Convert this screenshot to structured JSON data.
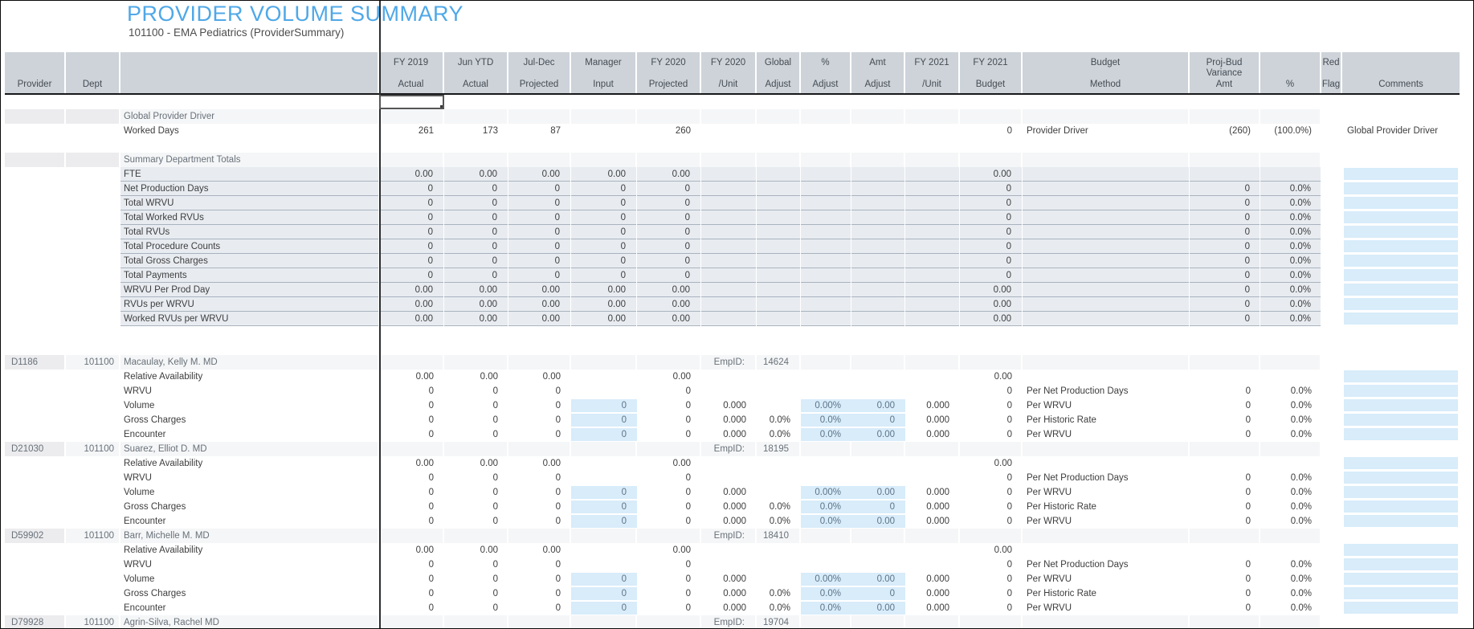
{
  "window": {
    "title": "PROVIDER VOLUME SUMMARY",
    "subtitle": "101100 - EMA Pediatrics (ProviderSummary)"
  },
  "palette": {
    "title_blue": "#4fa8e8",
    "header_bg": "#cdd3d9",
    "summary_row_bg": "#e8ecf1",
    "input_cell_blue": "#d8ecfa",
    "freeze_line": "#2c2d2e"
  },
  "table": {
    "columns": [
      {
        "id": "provider",
        "lines": [
          "Provider"
        ]
      },
      {
        "id": "dept",
        "lines": [
          "Dept"
        ]
      },
      {
        "id": "label",
        "lines": []
      },
      {
        "id": "fy2019-actual",
        "lines": [
          "FY 2019",
          "Actual"
        ]
      },
      {
        "id": "jun-ytd-actual",
        "lines": [
          "Jun YTD",
          "Actual"
        ]
      },
      {
        "id": "jul-dec-projected",
        "lines": [
          "Jul-Dec",
          "Projected"
        ]
      },
      {
        "id": "manager-input",
        "lines": [
          "Manager",
          "Input"
        ]
      },
      {
        "id": "fy2020-projected",
        "lines": [
          "FY 2020",
          "Projected"
        ]
      },
      {
        "id": "fy2020-unit",
        "lines": [
          "FY 2020",
          "/Unit"
        ]
      },
      {
        "id": "global-adjust",
        "lines": [
          "Global",
          "Adjust"
        ]
      },
      {
        "id": "pct-adjust",
        "lines": [
          "%",
          "Adjust"
        ]
      },
      {
        "id": "amt-adjust",
        "lines": [
          "Amt",
          "Adjust"
        ]
      },
      {
        "id": "fy2021-unit",
        "lines": [
          "FY 2021",
          "/Unit"
        ]
      },
      {
        "id": "fy2021-budget",
        "lines": [
          "FY 2021",
          "Budget"
        ]
      },
      {
        "id": "budget-method",
        "lines": [
          "Budget",
          "Method"
        ]
      },
      {
        "id": "proj-bud-variance-amt",
        "lines": [
          "Proj-Bud",
          "Variance",
          "Amt"
        ]
      },
      {
        "id": "variance-pct",
        "lines": [
          "%"
        ]
      },
      {
        "id": "red-flag",
        "lines": [
          "Red",
          "Flag"
        ]
      },
      {
        "id": "comments",
        "lines": [
          "Comments"
        ]
      }
    ],
    "rows": [
      {
        "type": "sel",
        "name": "row-empty-selected",
        "cells": {}
      },
      {
        "type": "sec",
        "name": "row-section-global-provider-driver",
        "cells": {
          "2": "Global Provider Driver"
        }
      },
      {
        "type": "data",
        "name": "row-worked-days",
        "cells": {
          "2": "Worked Days",
          "3": "261",
          "4": "173",
          "5": "87",
          "7": "260",
          "13": "0",
          "14": "Provider Driver",
          "15": "(260)",
          "16": "(100.0%)",
          "18": "Global Provider Driver"
        }
      },
      {
        "type": "blank",
        "name": "row-blank"
      },
      {
        "type": "sec",
        "name": "row-section-summary-department-totals",
        "cells": {
          "2": "Summary Department Totals"
        }
      },
      {
        "type": "sum",
        "name": "row-fte",
        "comment_blue": true,
        "cells": {
          "2": "FTE",
          "3": "0.00",
          "4": "0.00",
          "5": "0.00",
          "6": "0.00",
          "7": "0.00",
          "13": "0.00"
        }
      },
      {
        "type": "sum",
        "name": "row-net-production-days",
        "comment_blue": true,
        "cells": {
          "2": "Net Production Days",
          "3": "0",
          "4": "0",
          "5": "0",
          "6": "0",
          "7": "0",
          "13": "0",
          "15": "0",
          "16": "0.0%"
        }
      },
      {
        "type": "sum",
        "name": "row-total-wrvu",
        "comment_blue": true,
        "cells": {
          "2": "Total WRVU",
          "3": "0",
          "4": "0",
          "5": "0",
          "6": "0",
          "7": "0",
          "13": "0",
          "15": "0",
          "16": "0.0%"
        }
      },
      {
        "type": "sum",
        "name": "row-total-worked-rvus",
        "comment_blue": true,
        "cells": {
          "2": "Total Worked RVUs",
          "3": "0",
          "4": "0",
          "5": "0",
          "6": "0",
          "7": "0",
          "13": "0",
          "15": "0",
          "16": "0.0%"
        }
      },
      {
        "type": "sum",
        "name": "row-total-rvus",
        "comment_blue": true,
        "cells": {
          "2": "Total RVUs",
          "3": "0",
          "4": "0",
          "5": "0",
          "6": "0",
          "7": "0",
          "13": "0",
          "15": "0",
          "16": "0.0%"
        }
      },
      {
        "type": "sum",
        "name": "row-total-procedure-counts",
        "comment_blue": true,
        "cells": {
          "2": "Total Procedure Counts",
          "3": "0",
          "4": "0",
          "5": "0",
          "6": "0",
          "7": "0",
          "13": "0",
          "15": "0",
          "16": "0.0%"
        }
      },
      {
        "type": "sum",
        "name": "row-total-gross-charges",
        "comment_blue": true,
        "cells": {
          "2": "Total Gross Charges",
          "3": "0",
          "4": "0",
          "5": "0",
          "6": "0",
          "7": "0",
          "13": "0",
          "15": "0",
          "16": "0.0%"
        }
      },
      {
        "type": "sum",
        "name": "row-total-payments",
        "comment_blue": true,
        "cells": {
          "2": "Total Payments",
          "3": "0",
          "4": "0",
          "5": "0",
          "6": "0",
          "7": "0",
          "13": "0",
          "15": "0",
          "16": "0.0%"
        }
      },
      {
        "type": "sum",
        "name": "row-wrvu-per-prod-day",
        "comment_blue": true,
        "cells": {
          "2": "WRVU Per Prod Day",
          "3": "0.00",
          "4": "0.00",
          "5": "0.00",
          "6": "0.00",
          "7": "0.00",
          "13": "0.00",
          "15": "0",
          "16": "0.0%"
        }
      },
      {
        "type": "sum",
        "name": "row-rvus-per-wrvu",
        "comment_blue": true,
        "cells": {
          "2": "RVUs per WRVU",
          "3": "0.00",
          "4": "0.00",
          "5": "0.00",
          "6": "0.00",
          "7": "0.00",
          "13": "0.00",
          "15": "0",
          "16": "0.0%"
        }
      },
      {
        "type": "sum",
        "name": "row-worked-rvus-per-wrvu",
        "comment_blue": true,
        "cells": {
          "2": "Worked RVUs per WRVU",
          "3": "0.00",
          "4": "0.00",
          "5": "0.00",
          "6": "0.00",
          "7": "0.00",
          "13": "0.00",
          "15": "0",
          "16": "0.0%"
        }
      },
      {
        "type": "blank",
        "name": "row-blank"
      },
      {
        "type": "blank",
        "name": "row-blank"
      },
      {
        "type": "prov",
        "name": "row-provider-D1186",
        "cells": {
          "0": "D1186",
          "1": "101100",
          "2": "Macaulay, Kelly M. MD",
          "8": "EmpID:",
          "9": "14624"
        }
      },
      {
        "type": "det",
        "name": "row-D1186-relative-availability",
        "comment_blue": true,
        "cells": {
          "2": "Relative Availability",
          "3": "0.00",
          "4": "0.00",
          "5": "0.00",
          "7": "0.00",
          "13": "0.00"
        }
      },
      {
        "type": "det",
        "name": "row-D1186-wrvu",
        "comment_blue": true,
        "cells": {
          "2": "WRVU",
          "3": "0",
          "4": "0",
          "5": "0",
          "7": "0",
          "13": "0",
          "14": "Per Net Production Days",
          "15": "0",
          "16": "0.0%"
        }
      },
      {
        "type": "det",
        "name": "row-D1186-volume",
        "comment_blue": true,
        "blue_cells": [
          6,
          10,
          11
        ],
        "cells": {
          "2": "Volume",
          "3": "0",
          "4": "0",
          "5": "0",
          "6": "0",
          "7": "0",
          "8": "0.000",
          "10": "0.00%",
          "11": "0.00",
          "12": "0.000",
          "13": "0",
          "14": "Per WRVU",
          "15": "0",
          "16": "0.0%"
        }
      },
      {
        "type": "det",
        "name": "row-D1186-gross-charges",
        "comment_blue": true,
        "blue_cells": [
          6,
          10,
          11
        ],
        "cells": {
          "2": "Gross Charges",
          "3": "0",
          "4": "0",
          "5": "0",
          "6": "0",
          "7": "0",
          "8": "0.000",
          "9": "0.0%",
          "10": "0.0%",
          "11": "0",
          "12": "0.000",
          "13": "0",
          "14": "Per Historic Rate",
          "15": "0",
          "16": "0.0%"
        }
      },
      {
        "type": "det",
        "name": "row-D1186-encounter",
        "comment_blue": true,
        "blue_cells": [
          6,
          10,
          11
        ],
        "cells": {
          "2": "Encounter",
          "3": "0",
          "4": "0",
          "5": "0",
          "6": "0",
          "7": "0",
          "8": "0.000",
          "9": "0.0%",
          "10": "0.0%",
          "11": "0.00",
          "12": "0.000",
          "13": "0",
          "14": "Per WRVU",
          "15": "0",
          "16": "0.0%"
        }
      },
      {
        "type": "prov",
        "name": "row-provider-D21030",
        "cells": {
          "0": "D21030",
          "1": "101100",
          "2": "Suarez, Elliot D. MD",
          "8": "EmpID:",
          "9": "18195"
        }
      },
      {
        "type": "det",
        "name": "row-D21030-relative-availability",
        "comment_blue": true,
        "cells": {
          "2": "Relative Availability",
          "3": "0.00",
          "4": "0.00",
          "5": "0.00",
          "7": "0.00",
          "13": "0.00"
        }
      },
      {
        "type": "det",
        "name": "row-D21030-wrvu",
        "comment_blue": true,
        "cells": {
          "2": "WRVU",
          "3": "0",
          "4": "0",
          "5": "0",
          "7": "0",
          "13": "0",
          "14": "Per Net Production Days",
          "15": "0",
          "16": "0.0%"
        }
      },
      {
        "type": "det",
        "name": "row-D21030-volume",
        "comment_blue": true,
        "blue_cells": [
          6,
          10,
          11
        ],
        "cells": {
          "2": "Volume",
          "3": "0",
          "4": "0",
          "5": "0",
          "6": "0",
          "7": "0",
          "8": "0.000",
          "10": "0.00%",
          "11": "0.00",
          "12": "0.000",
          "13": "0",
          "14": "Per WRVU",
          "15": "0",
          "16": "0.0%"
        }
      },
      {
        "type": "det",
        "name": "row-D21030-gross-charges",
        "comment_blue": true,
        "blue_cells": [
          6,
          10,
          11
        ],
        "cells": {
          "2": "Gross Charges",
          "3": "0",
          "4": "0",
          "5": "0",
          "6": "0",
          "7": "0",
          "8": "0.000",
          "9": "0.0%",
          "10": "0.0%",
          "11": "0",
          "12": "0.000",
          "13": "0",
          "14": "Per Historic Rate",
          "15": "0",
          "16": "0.0%"
        }
      },
      {
        "type": "det",
        "name": "row-D21030-encounter",
        "comment_blue": true,
        "blue_cells": [
          6,
          10,
          11
        ],
        "cells": {
          "2": "Encounter",
          "3": "0",
          "4": "0",
          "5": "0",
          "6": "0",
          "7": "0",
          "8": "0.000",
          "9": "0.0%",
          "10": "0.0%",
          "11": "0.00",
          "12": "0.000",
          "13": "0",
          "14": "Per WRVU",
          "15": "0",
          "16": "0.0%"
        }
      },
      {
        "type": "prov",
        "name": "row-provider-D59902",
        "cells": {
          "0": "D59902",
          "1": "101100",
          "2": "Barr, Michelle M. MD",
          "8": "EmpID:",
          "9": "18410"
        }
      },
      {
        "type": "det",
        "name": "row-D59902-relative-availability",
        "comment_blue": true,
        "cells": {
          "2": "Relative Availability",
          "3": "0.00",
          "4": "0.00",
          "5": "0.00",
          "7": "0.00",
          "13": "0.00"
        }
      },
      {
        "type": "det",
        "name": "row-D59902-wrvu",
        "comment_blue": true,
        "cells": {
          "2": "WRVU",
          "3": "0",
          "4": "0",
          "5": "0",
          "7": "0",
          "13": "0",
          "14": "Per Net Production Days",
          "15": "0",
          "16": "0.0%"
        }
      },
      {
        "type": "det",
        "name": "row-D59902-volume",
        "comment_blue": true,
        "blue_cells": [
          6,
          10,
          11
        ],
        "cells": {
          "2": "Volume",
          "3": "0",
          "4": "0",
          "5": "0",
          "6": "0",
          "7": "0",
          "8": "0.000",
          "10": "0.00%",
          "11": "0.00",
          "12": "0.000",
          "13": "0",
          "14": "Per WRVU",
          "15": "0",
          "16": "0.0%"
        }
      },
      {
        "type": "det",
        "name": "row-D59902-gross-charges",
        "comment_blue": true,
        "blue_cells": [
          6,
          10,
          11
        ],
        "cells": {
          "2": "Gross Charges",
          "3": "0",
          "4": "0",
          "5": "0",
          "6": "0",
          "7": "0",
          "8": "0.000",
          "9": "0.0%",
          "10": "0.0%",
          "11": "0",
          "12": "0.000",
          "13": "0",
          "14": "Per Historic Rate",
          "15": "0",
          "16": "0.0%"
        }
      },
      {
        "type": "det",
        "name": "row-D59902-encounter",
        "comment_blue": true,
        "blue_cells": [
          6,
          10,
          11
        ],
        "cells": {
          "2": "Encounter",
          "3": "0",
          "4": "0",
          "5": "0",
          "6": "0",
          "7": "0",
          "8": "0.000",
          "9": "0.0%",
          "10": "0.0%",
          "11": "0.00",
          "12": "0.000",
          "13": "0",
          "14": "Per WRVU",
          "15": "0",
          "16": "0.0%"
        }
      },
      {
        "type": "prov",
        "name": "row-provider-D79928",
        "cells": {
          "0": "D79928",
          "1": "101100",
          "2": "Agrin-Silva, Rachel MD",
          "8": "EmpID:",
          "9": "19704"
        }
      }
    ]
  }
}
